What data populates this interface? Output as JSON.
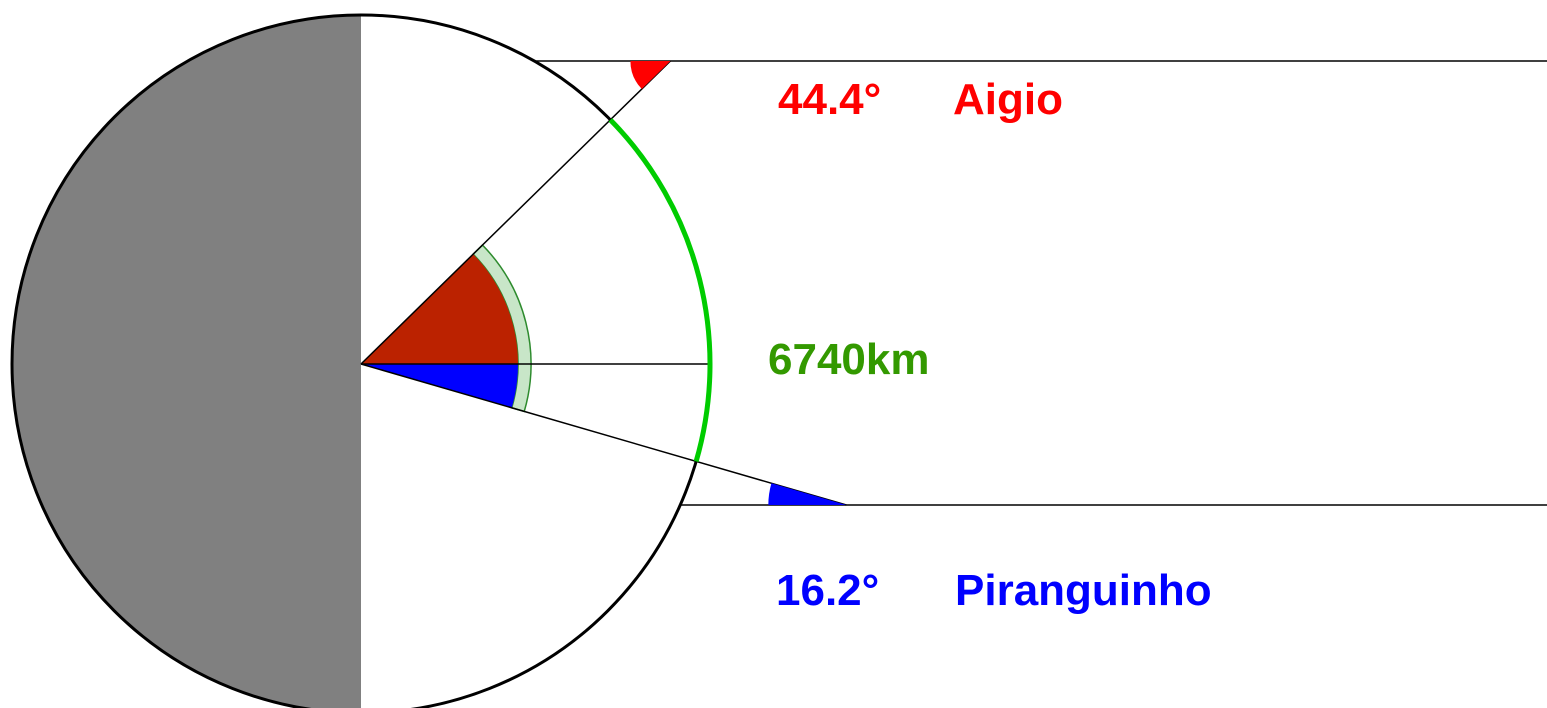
{
  "labels": {
    "aigio_angle": "44.4°",
    "aigio_name": "Aigio",
    "distance": "6740km",
    "piranguinho_angle": "16.2°",
    "piranguinho_name": "Piranguinho"
  },
  "angles_deg": {
    "aigio": 44.4,
    "piranguinho": 16.2
  },
  "colors": {
    "aigio": "#ff0000",
    "aigio_wedge": "#bb2200",
    "piranguinho": "#0000ff",
    "distance": "#339900",
    "arc": "#00cc00",
    "arc_band": "#c8e6c8",
    "shadow": "#808080",
    "line": "#000000"
  }
}
